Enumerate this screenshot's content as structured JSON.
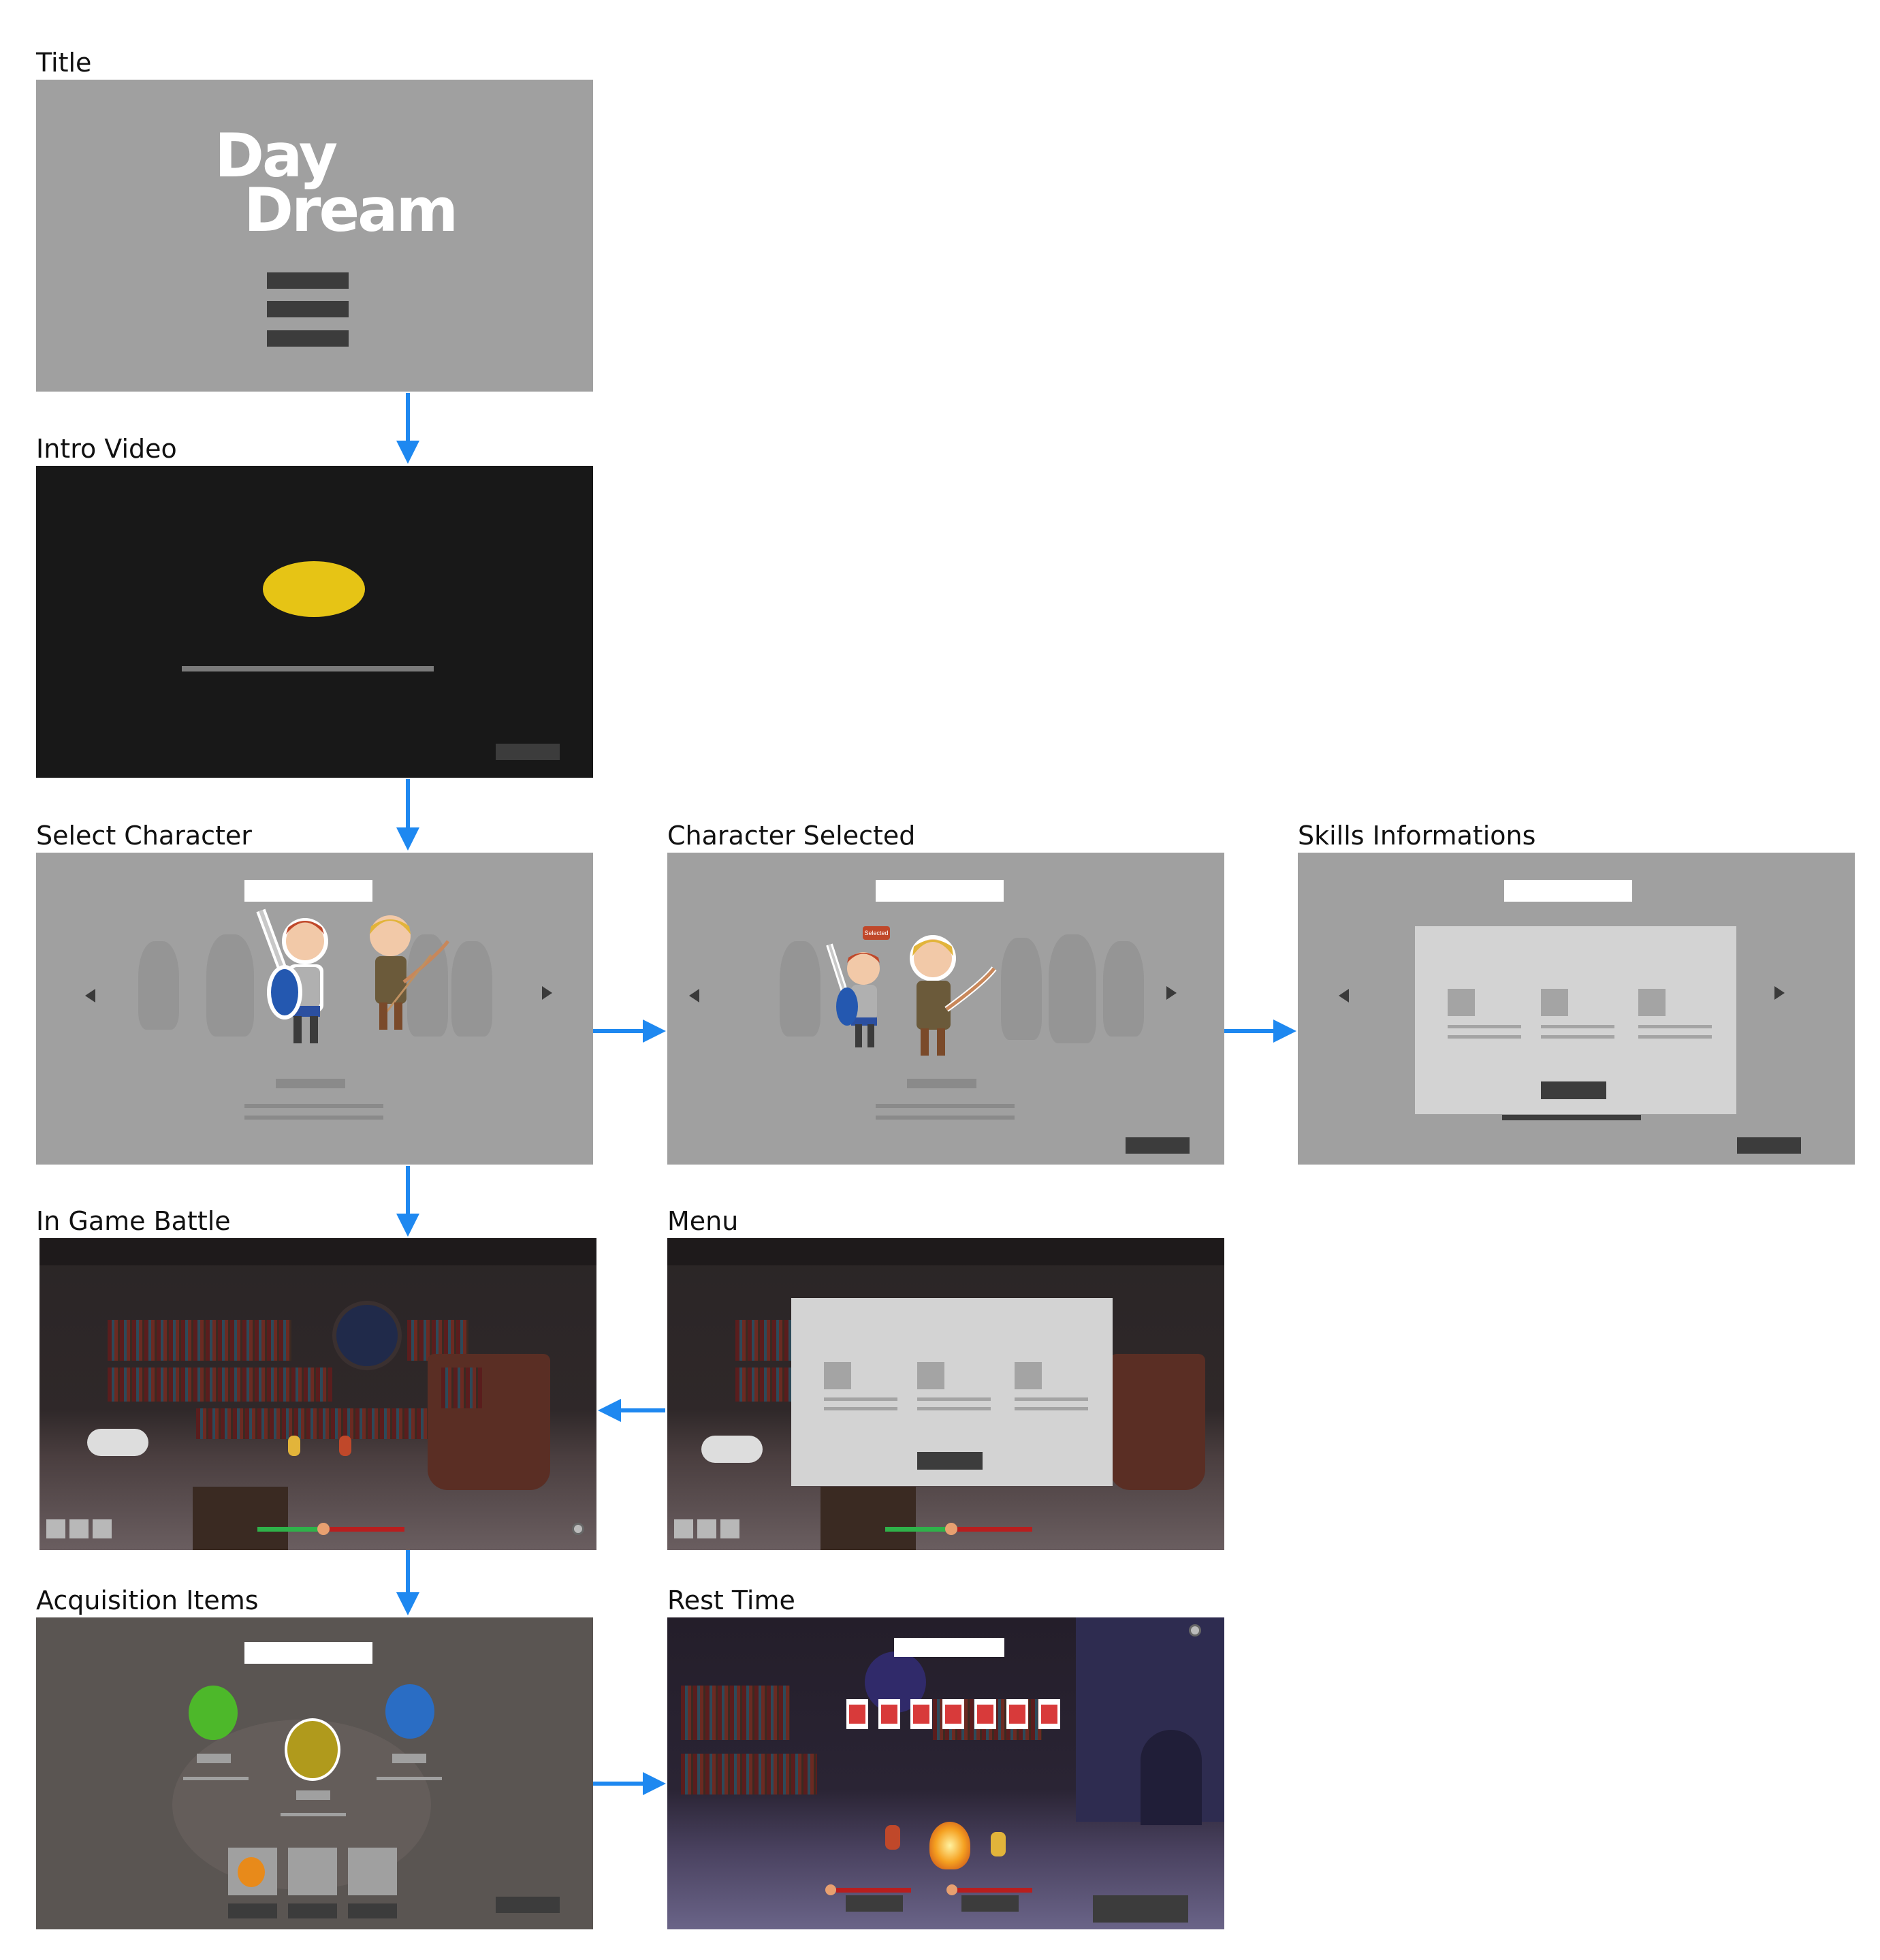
{
  "labels": {
    "title": "Title",
    "intro_video": "Intro Video",
    "select_character": "Select Character",
    "character_selected": "Character Selected",
    "skills_informations": "Skills Informations",
    "in_game_battle": "In Game Battle",
    "menu": "Menu",
    "acquisition_items": "Acquisition Items",
    "rest_time": "Rest Time"
  },
  "title_screen": {
    "logo_line1": "Day",
    "logo_line2": "Dream"
  },
  "character_selected_screen": {
    "badge": "Selected"
  },
  "colors": {
    "arrow": "#1e88f0",
    "screen_gray": "#a0a0a0",
    "intro_bg": "#181818",
    "intro_disc": "#e6c415",
    "item_green": "#4db82a",
    "item_gold": "#b09a1c",
    "item_blue": "#2a6dc4",
    "item_orange": "#e88a1a",
    "rest_red": "#d83a3a"
  },
  "flow": [
    {
      "from": "Title",
      "to": "Intro Video"
    },
    {
      "from": "Intro Video",
      "to": "Select Character"
    },
    {
      "from": "Select Character",
      "to": "Character Selected"
    },
    {
      "from": "Character Selected",
      "to": "Skills Informations"
    },
    {
      "from": "Select Character",
      "to": "In Game Battle"
    },
    {
      "from": "Menu",
      "to": "In Game Battle"
    },
    {
      "from": "In Game Battle",
      "to": "Acquisition Items"
    },
    {
      "from": "Acquisition Items",
      "to": "Rest Time"
    }
  ]
}
